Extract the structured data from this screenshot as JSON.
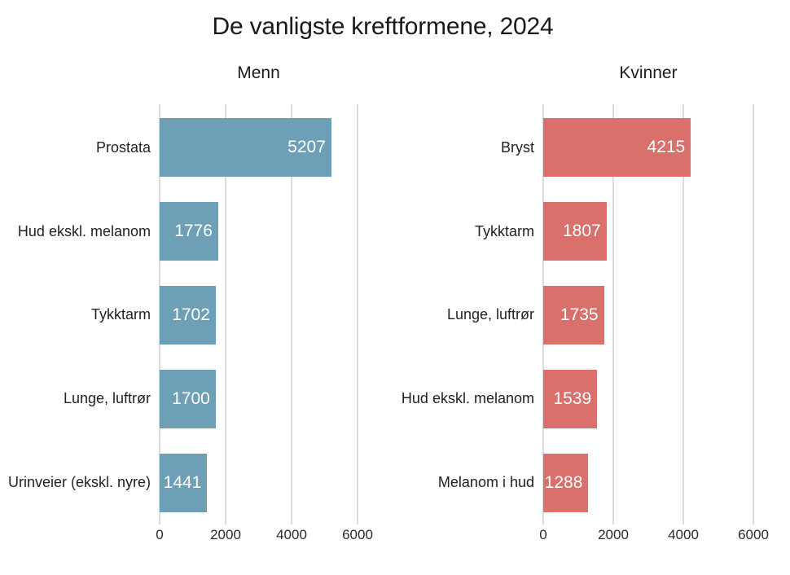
{
  "chart_data": {
    "type": "bar",
    "orientation": "horizontal",
    "title": "De vanligste kreftformene, 2024",
    "x_ticks": [
      0,
      2000,
      4000,
      6000
    ],
    "xlim": [
      0,
      6500
    ],
    "grid": "vertical-only",
    "gridline_color": "#dbdbdb",
    "value_label_color": "#ffffff",
    "panels": [
      {
        "label": "Menn",
        "bar_color": "#6d9fb7",
        "categories": [
          "Prostata",
          "Hud ekskl. melanom",
          "Tykktarm",
          "Lunge, luftrør",
          "Urinveier (ekskl. nyre)"
        ],
        "values": [
          5207,
          1776,
          1702,
          1700,
          1441
        ]
      },
      {
        "label": "Kvinner",
        "bar_color": "#d9706b",
        "categories": [
          "Bryst",
          "Tykktarm",
          "Lunge, luftrør",
          "Hud ekskl. melanom",
          "Melanom i hud"
        ],
        "values": [
          4215,
          1807,
          1735,
          1539,
          1288
        ]
      }
    ]
  }
}
